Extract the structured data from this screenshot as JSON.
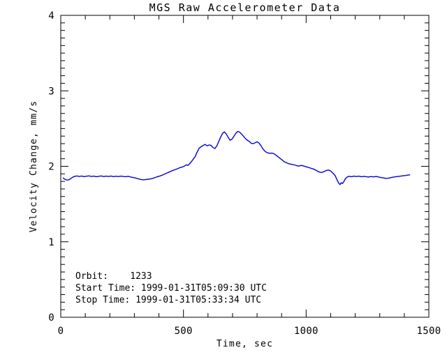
{
  "figure": {
    "background_color": "#ffffff",
    "axis_color": "#000000",
    "text_color": "#000000"
  },
  "chart_data": {
    "type": "line",
    "title": "MGS Raw Accelerometer Data",
    "xlabel": "Time, sec",
    "ylabel": "Velocity Change, mm/s",
    "xlim": [
      0,
      1500
    ],
    "ylim": [
      0,
      4
    ],
    "xticks": [
      0,
      500,
      1000,
      1500
    ],
    "yticks": [
      0,
      1,
      2,
      3,
      4
    ],
    "x_minor_interval": 100,
    "y_minor_interval": 0.1,
    "grid": false,
    "legend": "none",
    "line_color": "#0000dd",
    "series": [
      {
        "name": "velocity-change",
        "points": [
          [
            10,
            1.845
          ],
          [
            16,
            1.83
          ],
          [
            22,
            1.82
          ],
          [
            28,
            1.818
          ],
          [
            34,
            1.823
          ],
          [
            42,
            1.84
          ],
          [
            50,
            1.858
          ],
          [
            58,
            1.868
          ],
          [
            66,
            1.872
          ],
          [
            75,
            1.866
          ],
          [
            85,
            1.871
          ],
          [
            95,
            1.863
          ],
          [
            105,
            1.869
          ],
          [
            115,
            1.873
          ],
          [
            125,
            1.865
          ],
          [
            135,
            1.87
          ],
          [
            145,
            1.862
          ],
          [
            155,
            1.868
          ],
          [
            165,
            1.872
          ],
          [
            175,
            1.864
          ],
          [
            185,
            1.87
          ],
          [
            195,
            1.866
          ],
          [
            205,
            1.871
          ],
          [
            215,
            1.863
          ],
          [
            225,
            1.869
          ],
          [
            235,
            1.864
          ],
          [
            245,
            1.87
          ],
          [
            255,
            1.865
          ],
          [
            265,
            1.862
          ],
          [
            275,
            1.868
          ],
          [
            285,
            1.858
          ],
          [
            295,
            1.852
          ],
          [
            305,
            1.845
          ],
          [
            315,
            1.835
          ],
          [
            325,
            1.826
          ],
          [
            335,
            1.82
          ],
          [
            345,
            1.824
          ],
          [
            355,
            1.828
          ],
          [
            365,
            1.832
          ],
          [
            375,
            1.84
          ],
          [
            385,
            1.852
          ],
          [
            395,
            1.863
          ],
          [
            405,
            1.872
          ],
          [
            415,
            1.885
          ],
          [
            425,
            1.9
          ],
          [
            435,
            1.915
          ],
          [
            445,
            1.928
          ],
          [
            455,
            1.943
          ],
          [
            465,
            1.955
          ],
          [
            475,
            1.966
          ],
          [
            485,
            1.982
          ],
          [
            495,
            1.99
          ],
          [
            505,
            2.005
          ],
          [
            512,
            2.02
          ],
          [
            518,
            2.012
          ],
          [
            524,
            2.03
          ],
          [
            532,
            2.06
          ],
          [
            540,
            2.095
          ],
          [
            548,
            2.13
          ],
          [
            556,
            2.19
          ],
          [
            564,
            2.24
          ],
          [
            572,
            2.26
          ],
          [
            580,
            2.275
          ],
          [
            588,
            2.29
          ],
          [
            596,
            2.272
          ],
          [
            604,
            2.282
          ],
          [
            612,
            2.278
          ],
          [
            620,
            2.25
          ],
          [
            628,
            2.235
          ],
          [
            636,
            2.27
          ],
          [
            644,
            2.33
          ],
          [
            652,
            2.39
          ],
          [
            660,
            2.44
          ],
          [
            667,
            2.455
          ],
          [
            674,
            2.43
          ],
          [
            682,
            2.385
          ],
          [
            690,
            2.345
          ],
          [
            698,
            2.36
          ],
          [
            706,
            2.4
          ],
          [
            714,
            2.44
          ],
          [
            721,
            2.462
          ],
          [
            728,
            2.455
          ],
          [
            736,
            2.43
          ],
          [
            744,
            2.4
          ],
          [
            752,
            2.37
          ],
          [
            760,
            2.345
          ],
          [
            768,
            2.33
          ],
          [
            776,
            2.305
          ],
          [
            784,
            2.3
          ],
          [
            792,
            2.312
          ],
          [
            800,
            2.325
          ],
          [
            808,
            2.308
          ],
          [
            816,
            2.272
          ],
          [
            824,
            2.23
          ],
          [
            832,
            2.2
          ],
          [
            840,
            2.182
          ],
          [
            850,
            2.172
          ],
          [
            860,
            2.175
          ],
          [
            870,
            2.165
          ],
          [
            880,
            2.14
          ],
          [
            890,
            2.115
          ],
          [
            900,
            2.09
          ],
          [
            910,
            2.062
          ],
          [
            920,
            2.046
          ],
          [
            932,
            2.032
          ],
          [
            944,
            2.024
          ],
          [
            956,
            2.015
          ],
          [
            968,
            2.002
          ],
          [
            980,
            2.012
          ],
          [
            992,
            2.002
          ],
          [
            1004,
            1.99
          ],
          [
            1016,
            1.978
          ],
          [
            1028,
            1.966
          ],
          [
            1040,
            1.948
          ],
          [
            1052,
            1.925
          ],
          [
            1062,
            1.918
          ],
          [
            1072,
            1.928
          ],
          [
            1082,
            1.945
          ],
          [
            1092,
            1.95
          ],
          [
            1100,
            1.938
          ],
          [
            1110,
            1.905
          ],
          [
            1118,
            1.878
          ],
          [
            1126,
            1.82
          ],
          [
            1133,
            1.775
          ],
          [
            1138,
            1.758
          ],
          [
            1143,
            1.782
          ],
          [
            1148,
            1.772
          ],
          [
            1154,
            1.8
          ],
          [
            1160,
            1.835
          ],
          [
            1167,
            1.858
          ],
          [
            1175,
            1.868
          ],
          [
            1185,
            1.862
          ],
          [
            1195,
            1.87
          ],
          [
            1205,
            1.864
          ],
          [
            1215,
            1.87
          ],
          [
            1225,
            1.861
          ],
          [
            1235,
            1.867
          ],
          [
            1245,
            1.862
          ],
          [
            1255,
            1.858
          ],
          [
            1265,
            1.864
          ],
          [
            1275,
            1.86
          ],
          [
            1285,
            1.865
          ],
          [
            1295,
            1.858
          ],
          [
            1305,
            1.852
          ],
          [
            1315,
            1.846
          ],
          [
            1325,
            1.84
          ],
          [
            1335,
            1.842
          ],
          [
            1345,
            1.85
          ],
          [
            1355,
            1.856
          ],
          [
            1365,
            1.862
          ],
          [
            1375,
            1.866
          ],
          [
            1385,
            1.87
          ],
          [
            1395,
            1.875
          ],
          [
            1405,
            1.878
          ],
          [
            1415,
            1.884
          ],
          [
            1422,
            1.886
          ]
        ]
      }
    ],
    "annotation": {
      "lines": [
        "Orbit:    1233",
        "Start Time: 1999-01-31T05:09:30 UTC",
        "Stop Time: 1999-01-31T05:33:34 UTC"
      ]
    }
  }
}
